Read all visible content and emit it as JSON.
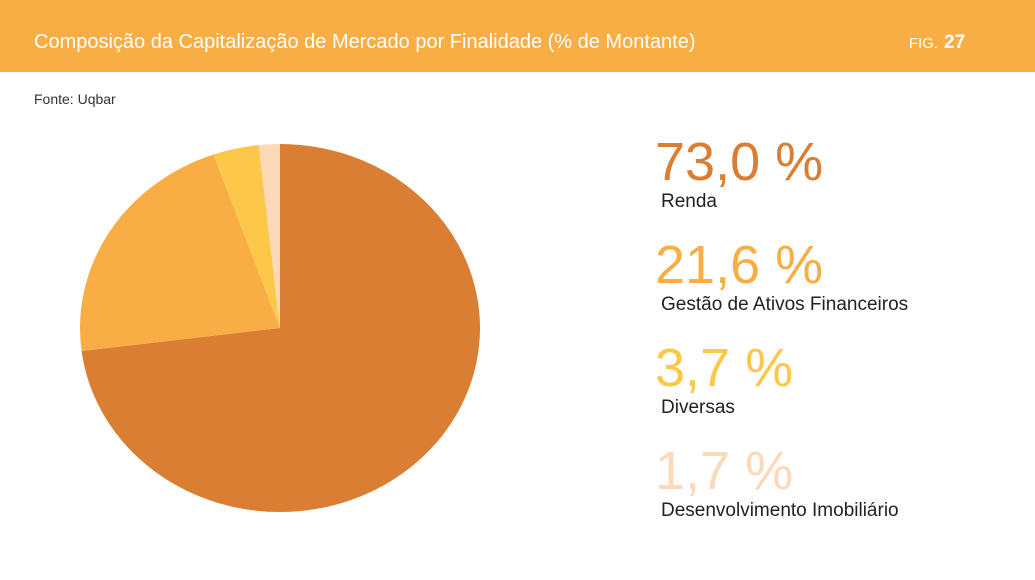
{
  "header": {
    "title": "Composição da Capitalização de Mercado por Finalidade (% de Montante)",
    "fig_label": "FIG.",
    "fig_number": "27"
  },
  "source": "Fonte: Uqbar",
  "chart_data": {
    "type": "pie",
    "categories": [
      "Renda",
      "Gestão de Ativos Financeiros",
      "Diversas",
      "Desenvolvimento Imobiliário"
    ],
    "values": [
      73.0,
      21.6,
      3.7,
      1.7
    ],
    "value_labels": [
      "73,0 %",
      "21,6 %",
      "3,7 %",
      "1,7 %"
    ],
    "colors": [
      "#d97e33",
      "#f8ae45",
      "#fdc84a",
      "#fcd9b8"
    ]
  }
}
